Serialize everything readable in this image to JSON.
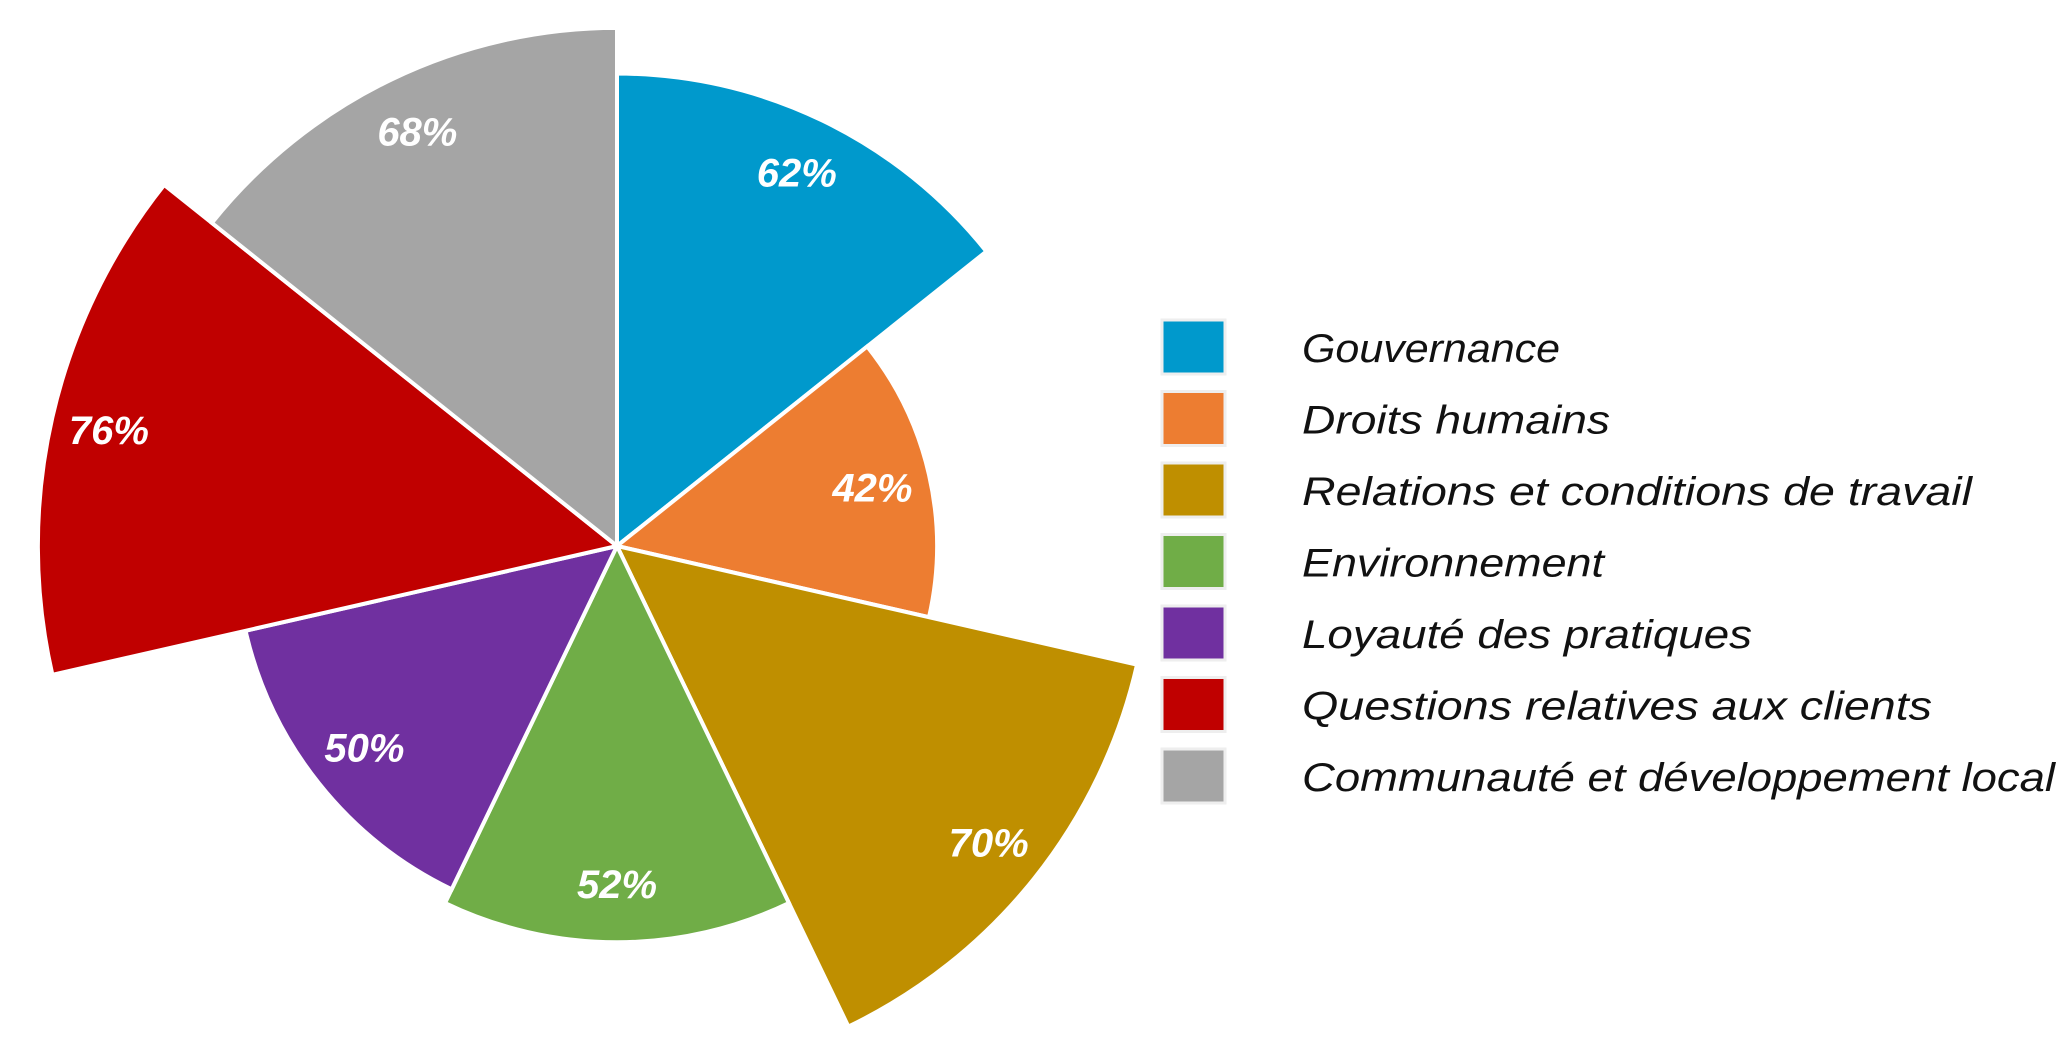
{
  "chart_data": {
    "type": "polar-area",
    "title": "",
    "categories": [
      "Gouvernance",
      "Droits humains",
      "Relations et conditions de travail",
      "Environnement",
      "Loyauté des pratiques",
      "Questions relatives aux clients",
      "Communauté et développement local"
    ],
    "values": [
      62,
      42,
      70,
      52,
      50,
      76,
      68
    ],
    "labels": [
      "62%",
      "42%",
      "70%",
      "52%",
      "50%",
      "76%",
      "68%"
    ],
    "colors": [
      "#0099CC",
      "#ED7D31",
      "#BF8F00",
      "#70AD47",
      "#7030A0",
      "#C00000",
      "#A5A5A5"
    ],
    "unit": "%",
    "rlim": [
      0,
      100
    ],
    "start": "top",
    "direction": "clockwise",
    "legend_position": "right",
    "grid": false
  }
}
